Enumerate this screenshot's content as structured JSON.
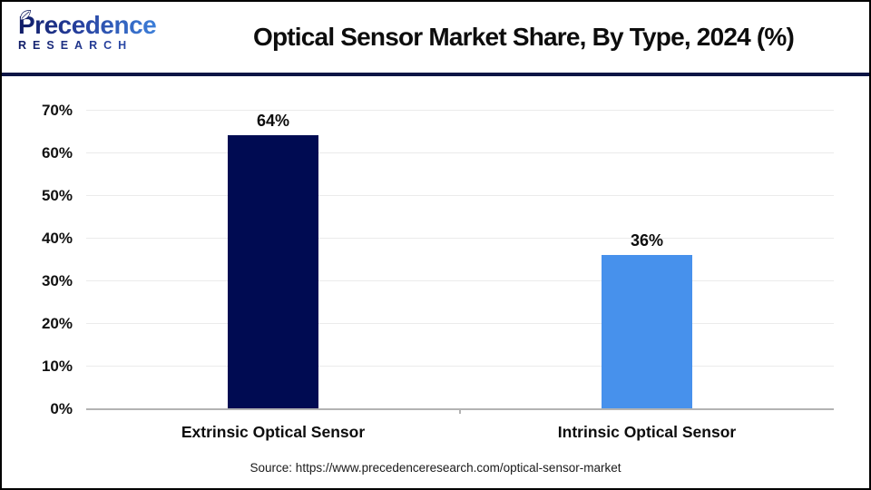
{
  "header": {
    "logo_line1": "Precedence",
    "logo_line2": "RESEARCH",
    "title": "Optical Sensor Market Share, By Type, 2024 (%)"
  },
  "chart_data": {
    "type": "bar",
    "title": "Optical Sensor Market Share, By Type, 2024 (%)",
    "categories": [
      "Extrinsic Optical Sensor",
      "Intrinsic Optical Sensor"
    ],
    "values": [
      64,
      36
    ],
    "value_labels": [
      "64%",
      "36%"
    ],
    "bar_colors": [
      "#000B52",
      "#4791EC"
    ],
    "ylim": [
      0,
      70
    ],
    "ytick_values": [
      0,
      10,
      20,
      30,
      40,
      50,
      60,
      70
    ],
    "ytick_labels": [
      "0%",
      "10%",
      "20%",
      "30%",
      "40%",
      "50%",
      "60%",
      "70%"
    ],
    "xlabel": "",
    "ylabel": "",
    "grid": true,
    "legend": false
  },
  "footer": {
    "source": "Source: https://www.precedenceresearch.com/optical-sensor-market"
  },
  "colors": {
    "header_rule": "#0C1545",
    "gridline": "#EBEBEB",
    "axis": "#B3B3B3",
    "bar_extrinsic": "#000B52",
    "bar_intrinsic": "#4791EC",
    "text": "#0D0D0D"
  }
}
